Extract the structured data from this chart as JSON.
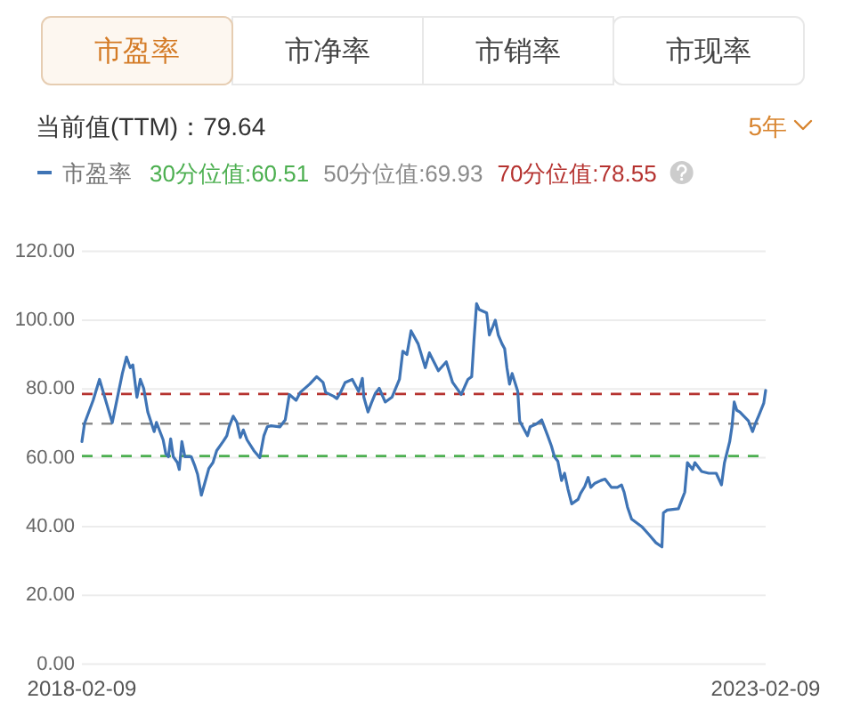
{
  "chart_data": {
    "type": "line",
    "title": "当前值(TTM)：79.64",
    "annotations": [
      "市盈率",
      "市净率",
      "市销率",
      "市现率",
      "5年"
    ],
    "xlim": [
      "2018-02-09",
      "2023-02-09"
    ],
    "xticks": [
      "2018-02-09",
      "2023-02-09"
    ],
    "ylim": [
      0,
      120
    ],
    "yticks": [
      {
        "value": 0,
        "label": "0.00"
      },
      {
        "value": 20,
        "label": "20.00"
      },
      {
        "value": 40,
        "label": "40.00"
      },
      {
        "value": 60,
        "label": "60.00"
      },
      {
        "value": 80,
        "label": "80.00"
      },
      {
        "value": 100,
        "label": "100.00"
      },
      {
        "value": 120,
        "label": "120.00"
      }
    ],
    "grid": "y",
    "legend": "top left",
    "ref_lines": [
      {
        "axis": "y",
        "value": 60.51,
        "label": "30分位值:60.51",
        "color": "#4caf50",
        "line_style": "dashed"
      },
      {
        "axis": "y",
        "value": 69.93,
        "label": "50分位值:69.93",
        "color": "#8a8a8a",
        "line_style": "dashed"
      },
      {
        "axis": "y",
        "value": 78.55,
        "label": "70分位值:78.55",
        "color": "#b5322f",
        "line_style": "dashed"
      }
    ],
    "series": [
      {
        "name": "市盈率",
        "color": "#3f74b5",
        "x": [
          "2018-02-09",
          "2018-02-16",
          "2018-03-11",
          "2018-03-28",
          "2018-05-01",
          "2018-05-28",
          "2018-06-08",
          "2018-06-18",
          "2018-06-25",
          "2018-07-06",
          "2018-07-15",
          "2018-07-24",
          "2018-08-04",
          "2018-08-21",
          "2018-08-27",
          "2018-09-14",
          "2018-09-21",
          "2018-09-28",
          "2018-10-04",
          "2018-10-11",
          "2018-10-22",
          "2018-10-27",
          "2018-11-03",
          "2018-11-11",
          "2018-11-28",
          "2018-12-07",
          "2018-12-15",
          "2018-12-25",
          "2019-01-03",
          "2019-01-14",
          "2019-01-25",
          "2019-02-04",
          "2019-02-21",
          "2019-03-03",
          "2019-03-09",
          "2019-03-20",
          "2019-03-30",
          "2019-04-08",
          "2019-04-16",
          "2019-04-26",
          "2019-05-14",
          "2019-05-30",
          "2019-06-10",
          "2019-06-19",
          "2019-06-29",
          "2019-07-23",
          "2019-08-06",
          "2019-08-17",
          "2019-09-04",
          "2019-09-15",
          "2019-10-10",
          "2019-10-29",
          "2019-11-15",
          "2019-11-22",
          "2019-12-13",
          "2019-12-22",
          "2020-01-02",
          "2020-01-13",
          "2020-02-01",
          "2020-02-18",
          "2020-02-28",
          "2020-03-03",
          "2020-03-14",
          "2020-03-23",
          "2020-04-03",
          "2020-04-13",
          "2020-04-29",
          "2020-05-17",
          "2020-06-06",
          "2020-06-15",
          "2020-06-26",
          "2020-07-07",
          "2020-07-26",
          "2020-08-14",
          "2020-08-25",
          "2020-09-18",
          "2020-10-09",
          "2020-10-26",
          "2020-11-01",
          "2020-11-18",
          "2020-12-06",
          "2020-12-16",
          "2020-12-22",
          "2020-12-29",
          "2021-01-05",
          "2021-01-25",
          "2021-02-01",
          "2021-02-11",
          "2021-02-17",
          "2021-02-25",
          "2021-03-07",
          "2021-03-14",
          "2021-03-20",
          "2021-03-27",
          "2021-04-03",
          "2021-04-18",
          "2021-04-23",
          "2021-04-30",
          "2021-05-14",
          "2021-05-21",
          "2021-06-06",
          "2021-06-21",
          "2021-07-07",
          "2021-07-17",
          "2021-07-25",
          "2021-08-03",
          "2021-08-13",
          "2021-08-21",
          "2021-08-30",
          "2021-09-09",
          "2021-09-26",
          "2021-10-03",
          "2021-10-14",
          "2021-10-23",
          "2021-10-30",
          "2021-11-10",
          "2021-11-26",
          "2021-12-07",
          "2021-12-24",
          "2022-01-09",
          "2022-01-20",
          "2022-01-27",
          "2022-02-05",
          "2022-02-16",
          "2022-03-15",
          "2022-04-04",
          "2022-04-22",
          "2022-05-08",
          "2022-05-12",
          "2022-05-22",
          "2022-06-21",
          "2022-07-08",
          "2022-07-15",
          "2022-07-29",
          "2022-08-04",
          "2022-08-22",
          "2022-09-10",
          "2022-09-30",
          "2022-10-14",
          "2022-10-22",
          "2022-11-05",
          "2022-11-11",
          "2022-11-17",
          "2022-11-24",
          "2022-12-02",
          "2022-12-25",
          "2023-01-05",
          "2023-01-12",
          "2023-01-21",
          "2023-02-04",
          "2023-02-09"
        ],
        "values": [
          64.7,
          70,
          76.7,
          82.8,
          70.2,
          84.5,
          89.3,
          86.2,
          87,
          77.6,
          82.8,
          80.2,
          73.3,
          67.6,
          70.3,
          65.2,
          61.2,
          60.3,
          65.5,
          60.3,
          58.6,
          56.6,
          64.7,
          60.3,
          60.3,
          57.8,
          55.2,
          49.1,
          52.6,
          56.9,
          58.6,
          62.1,
          64.7,
          66.4,
          69,
          72.1,
          70.3,
          65.9,
          68.1,
          65.2,
          62.1,
          60,
          66.4,
          69,
          69.3,
          69,
          71,
          78.4,
          76.7,
          79,
          81.4,
          83.6,
          81.9,
          79,
          77.9,
          77.2,
          79.3,
          81.9,
          82.8,
          79.3,
          83.1,
          77.6,
          73.3,
          75.9,
          78.8,
          80.2,
          76.2,
          77.6,
          82.8,
          91,
          90,
          96.9,
          93.1,
          86.2,
          90.5,
          85.3,
          87.9,
          81.9,
          81,
          78.4,
          82.8,
          83.6,
          94,
          104.8,
          103.1,
          102.1,
          95.7,
          98.3,
          100,
          95.7,
          93.1,
          91.7,
          86.2,
          81.4,
          84.5,
          79.3,
          70.7,
          69.3,
          66.4,
          69,
          69.8,
          71,
          66.4,
          63.4,
          60.3,
          59,
          53.4,
          55.5,
          50.9,
          46.6,
          47.9,
          49.7,
          51.7,
          54.3,
          51.4,
          52.6,
          53.4,
          53.8,
          51.4,
          51.4,
          52.1,
          50,
          45.7,
          42.2,
          40,
          37.6,
          35.3,
          34.1,
          44,
          44.8,
          45.2,
          50,
          58.6,
          56.6,
          58.6,
          56,
          55.5,
          55.5,
          52.1,
          58.6,
          64.7,
          69,
          76.2,
          73.8,
          73.3,
          70.7,
          67.6,
          69.8,
          72.1,
          75.9,
          79.6
        ]
      }
    ]
  }
}
